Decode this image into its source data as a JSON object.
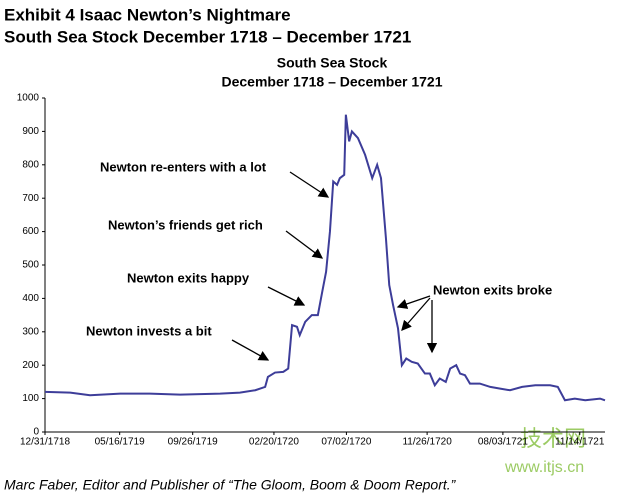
{
  "header": {
    "title": "Exhibit 4  Isaac Newton’s Nightmare",
    "subtitle": "South Sea Stock December 1718 – December 1721"
  },
  "chart_data": {
    "type": "line",
    "title": "South Sea Stock",
    "subtitle": "December 1718 – December 1721",
    "x": [
      0,
      46,
      82,
      137,
      191,
      246,
      319,
      355,
      383,
      401,
      406,
      419,
      434,
      443,
      450,
      459,
      464,
      474,
      486,
      497,
      505,
      512,
      519,
      525,
      532,
      537,
      545,
      548,
      554,
      559,
      570,
      583,
      596,
      605,
      612,
      621,
      627,
      634,
      643,
      650,
      658,
      668,
      679,
      692,
      701,
      710,
      719,
      730,
      738,
      749,
      756,
      765,
      774,
      792,
      811,
      829,
      847,
      869,
      893,
      920,
      934,
      947,
      965,
      984,
      1011,
      1020
    ],
    "series": [
      {
        "name": "South Sea Stock",
        "color": "#3d3d99",
        "values": [
          120,
          118,
          110,
          115,
          115,
          112,
          115,
          118,
          125,
          135,
          165,
          178,
          180,
          190,
          320,
          315,
          290,
          330,
          350,
          350,
          420,
          480,
          600,
          750,
          740,
          760,
          770,
          950,
          870,
          900,
          880,
          830,
          760,
          800,
          760,
          580,
          440,
          380,
          310,
          200,
          220,
          210,
          205,
          175,
          175,
          140,
          160,
          150,
          190,
          200,
          175,
          170,
          145,
          145,
          135,
          130,
          125,
          135,
          140,
          140,
          135,
          95,
          100,
          95,
          100,
          95
        ]
      }
    ],
    "xlim": [
      0,
      1020
    ],
    "xticks": [
      {
        "value": 0,
        "label": "12/31/1718"
      },
      {
        "value": 136,
        "label": "05/16/1719"
      },
      {
        "value": 269,
        "label": "09/26/1719"
      },
      {
        "value": 417,
        "label": "02/20/1720"
      },
      {
        "value": 549,
        "label": "07/02/1720"
      },
      {
        "value": 696,
        "label": "11/26/1720"
      },
      {
        "value": 834,
        "label": "08/03/1721"
      },
      {
        "value": 974,
        "label": "11/14/1721"
      }
    ],
    "ylim": [
      0,
      1000
    ],
    "yticks": [
      0,
      100,
      200,
      300,
      400,
      500,
      600,
      700,
      800,
      900,
      1000
    ],
    "grid": false,
    "annotations": [
      "Newton re-enters with a lot",
      "Newton’s friends get rich",
      "Newton exits happy",
      "Newton invests a bit",
      "Newton exits broke"
    ]
  },
  "footer": "Marc Faber, Editor and Publisher of “The Gloom, Boom & Doom Report.”",
  "watermark": {
    "brand": "技术网",
    "url": "www.itjs.cn"
  }
}
